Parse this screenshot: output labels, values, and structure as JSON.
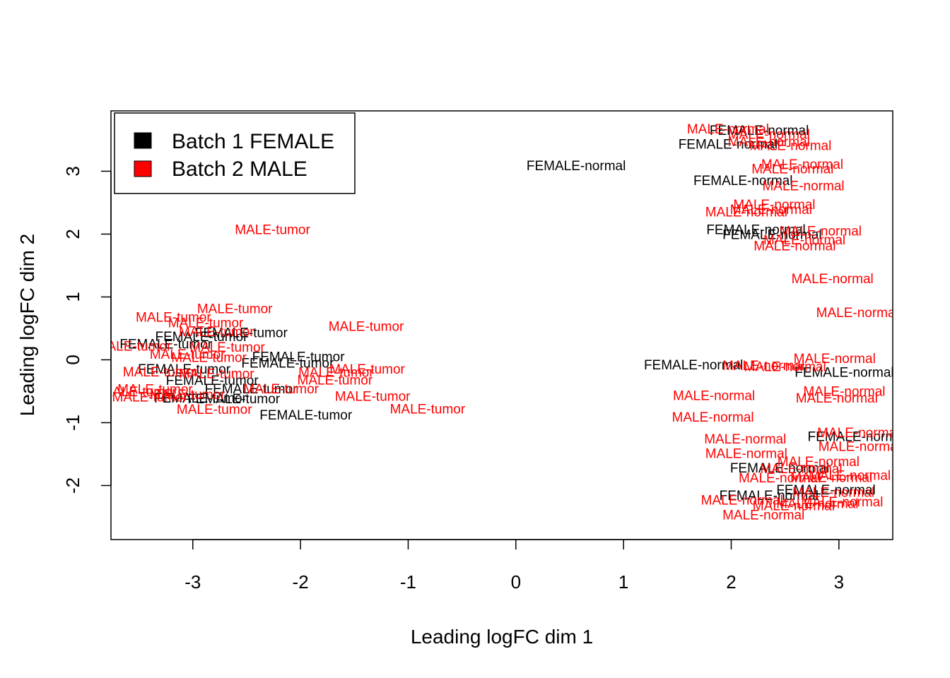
{
  "chart_data": {
    "type": "scatter",
    "title": "",
    "xlabel": "Leading logFC dim 1",
    "ylabel": "Leading logFC dim 2",
    "xlim": [
      -3.76,
      3.5
    ],
    "ylim": [
      -2.86,
      3.96
    ],
    "xticks": [
      -3,
      -2,
      -1,
      0,
      1,
      2,
      3
    ],
    "yticks": [
      -2,
      -1,
      0,
      1,
      2,
      3
    ],
    "legend": {
      "position": "top-left",
      "entries": [
        {
          "label": "Batch 1 FEMALE",
          "color": "#000000"
        },
        {
          "label": "Batch 2 MALE",
          "color": "#ff0000"
        }
      ]
    },
    "series": [
      {
        "name": "Batch 1 FEMALE",
        "color": "#000000",
        "points": [
          {
            "x": 0.56,
            "y": 3.08,
            "label": "FEMALE-normal"
          },
          {
            "x": 2.26,
            "y": 3.64,
            "label": "FEMALE-normal"
          },
          {
            "x": 1.97,
            "y": 3.42,
            "label": "FEMALE-normal"
          },
          {
            "x": 2.11,
            "y": 2.84,
            "label": "FEMALE-normal"
          },
          {
            "x": 2.23,
            "y": 2.06,
            "label": "FEMALE-normal"
          },
          {
            "x": 2.38,
            "y": 1.98,
            "label": "FEMALE-normal"
          },
          {
            "x": 1.65,
            "y": -0.09,
            "label": "FEMALE-normal"
          },
          {
            "x": 3.05,
            "y": -0.21,
            "label": "FEMALE-normal"
          },
          {
            "x": 3.17,
            "y": -1.23,
            "label": "FEMALE-normal"
          },
          {
            "x": 2.45,
            "y": -1.73,
            "label": "FEMALE-normal"
          },
          {
            "x": 2.88,
            "y": -2.08,
            "label": "FEMALE-normal"
          },
          {
            "x": 2.35,
            "y": -2.17,
            "label": "FEMALE-normal"
          },
          {
            "x": -3.25,
            "y": 0.24,
            "label": "FEMALE-tumor"
          },
          {
            "x": -2.92,
            "y": 0.36,
            "label": "FEMALE-tumor"
          },
          {
            "x": -2.55,
            "y": 0.42,
            "label": "FEMALE-tumor"
          },
          {
            "x": -2.02,
            "y": 0.04,
            "label": "FEMALE-tumor"
          },
          {
            "x": -2.12,
            "y": -0.06,
            "label": "FEMALE-tumor"
          },
          {
            "x": -3.08,
            "y": -0.16,
            "label": "FEMALE-tumor"
          },
          {
            "x": -2.82,
            "y": -0.34,
            "label": "FEMALE-tumor"
          },
          {
            "x": -2.46,
            "y": -0.47,
            "label": "FEMALE-tumor"
          },
          {
            "x": -2.93,
            "y": -0.62,
            "label": "FEMALE-tumor"
          },
          {
            "x": -2.62,
            "y": -0.63,
            "label": "FEMALE-tumor"
          },
          {
            "x": -1.95,
            "y": -0.89,
            "label": "FEMALE-tumor"
          }
        ]
      },
      {
        "name": "Batch 2 MALE",
        "color": "#ff0000",
        "points": [
          {
            "x": -2.26,
            "y": 2.06,
            "label": "MALE-tumor"
          },
          {
            "x": -1.39,
            "y": 0.52,
            "label": "MALE-tumor"
          },
          {
            "x": -2.61,
            "y": 0.8,
            "label": "MALE-tumor"
          },
          {
            "x": -3.18,
            "y": 0.67,
            "label": "MALE-tumor"
          },
          {
            "x": -2.88,
            "y": 0.58,
            "label": "MALE-tumor"
          },
          {
            "x": -2.78,
            "y": 0.44,
            "label": "MALE-tumor"
          },
          {
            "x": -3.55,
            "y": 0.21,
            "label": "MALE-tumor"
          },
          {
            "x": -2.68,
            "y": 0.19,
            "label": "MALE-tumor"
          },
          {
            "x": -3.05,
            "y": 0.08,
            "label": "MALE-tumor"
          },
          {
            "x": -2.85,
            "y": 0.03,
            "label": "MALE-tumor"
          },
          {
            "x": -1.38,
            "y": -0.16,
            "label": "MALE-tumor"
          },
          {
            "x": -1.67,
            "y": -0.21,
            "label": "MALE-tumor"
          },
          {
            "x": -3.3,
            "y": -0.2,
            "label": "MALE-tumor"
          },
          {
            "x": -2.78,
            "y": -0.23,
            "label": "MALE-tumor"
          },
          {
            "x": -1.68,
            "y": -0.33,
            "label": "MALE-tumor"
          },
          {
            "x": -3.35,
            "y": -0.48,
            "label": "MALE-tumor"
          },
          {
            "x": -2.18,
            "y": -0.47,
            "label": "MALE-tumor"
          },
          {
            "x": -3.5,
            "y": -0.52,
            "label": "MALE-tumor"
          },
          {
            "x": -3.05,
            "y": -0.56,
            "label": "MALE-tumor"
          },
          {
            "x": -1.33,
            "y": -0.59,
            "label": "MALE-tumor"
          },
          {
            "x": -3.4,
            "y": -0.6,
            "label": "MALE-tumor"
          },
          {
            "x": -2.8,
            "y": -0.8,
            "label": "MALE-tumor"
          },
          {
            "x": -0.82,
            "y": -0.79,
            "label": "MALE-tumor"
          },
          {
            "x": 1.97,
            "y": 3.66,
            "label": "MALE-normal"
          },
          {
            "x": 2.35,
            "y": 3.58,
            "label": "MALE-normal"
          },
          {
            "x": 2.35,
            "y": 3.46,
            "label": "MALE-normal"
          },
          {
            "x": 2.55,
            "y": 3.4,
            "label": "MALE-normal"
          },
          {
            "x": 2.66,
            "y": 3.1,
            "label": "MALE-normal"
          },
          {
            "x": 2.57,
            "y": 3.03,
            "label": "MALE-normal"
          },
          {
            "x": 2.67,
            "y": 2.76,
            "label": "MALE-normal"
          },
          {
            "x": 2.4,
            "y": 2.46,
            "label": "MALE-normal"
          },
          {
            "x": 2.37,
            "y": 2.38,
            "label": "MALE-normal"
          },
          {
            "x": 2.14,
            "y": 2.34,
            "label": "MALE-normal"
          },
          {
            "x": 2.83,
            "y": 2.04,
            "label": "MALE-normal"
          },
          {
            "x": 2.68,
            "y": 1.9,
            "label": "MALE-normal"
          },
          {
            "x": 2.59,
            "y": 1.8,
            "label": "MALE-normal"
          },
          {
            "x": 2.94,
            "y": 1.28,
            "label": "MALE-normal"
          },
          {
            "x": 3.17,
            "y": 0.74,
            "label": "MALE-normal"
          },
          {
            "x": 2.96,
            "y": 0.01,
            "label": "MALE-normal"
          },
          {
            "x": 2.3,
            "y": -0.1,
            "label": "MALE-normal"
          },
          {
            "x": 2.5,
            "y": -0.12,
            "label": "MALE-normal"
          },
          {
            "x": 3.05,
            "y": -0.51,
            "label": "MALE-normal"
          },
          {
            "x": 2.98,
            "y": -0.62,
            "label": "MALE-normal"
          },
          {
            "x": 1.84,
            "y": -0.58,
            "label": "MALE-normal"
          },
          {
            "x": 1.83,
            "y": -0.92,
            "label": "MALE-normal"
          },
          {
            "x": 3.18,
            "y": -1.17,
            "label": "MALE-normal"
          },
          {
            "x": 3.19,
            "y": -1.39,
            "label": "MALE-normal"
          },
          {
            "x": 2.13,
            "y": -1.27,
            "label": "MALE-normal"
          },
          {
            "x": 2.14,
            "y": -1.5,
            "label": "MALE-normal"
          },
          {
            "x": 2.81,
            "y": -1.63,
            "label": "MALE-normal"
          },
          {
            "x": 2.65,
            "y": -1.74,
            "label": "MALE-normal"
          },
          {
            "x": 2.45,
            "y": -1.89,
            "label": "MALE-normal"
          },
          {
            "x": 2.93,
            "y": -1.88,
            "label": "MALE-normal"
          },
          {
            "x": 3.1,
            "y": -1.85,
            "label": "MALE-normal"
          },
          {
            "x": 2.95,
            "y": -2.12,
            "label": "MALE-normal"
          },
          {
            "x": 3.03,
            "y": -2.27,
            "label": "MALE-normal"
          },
          {
            "x": 2.1,
            "y": -2.24,
            "label": "MALE-normal"
          },
          {
            "x": 2.3,
            "y": -2.48,
            "label": "MALE-normal"
          },
          {
            "x": 2.58,
            "y": -2.33,
            "label": "MALE-normal"
          },
          {
            "x": 2.8,
            "y": -2.3,
            "label": "MALE-normal"
          }
        ]
      }
    ]
  }
}
